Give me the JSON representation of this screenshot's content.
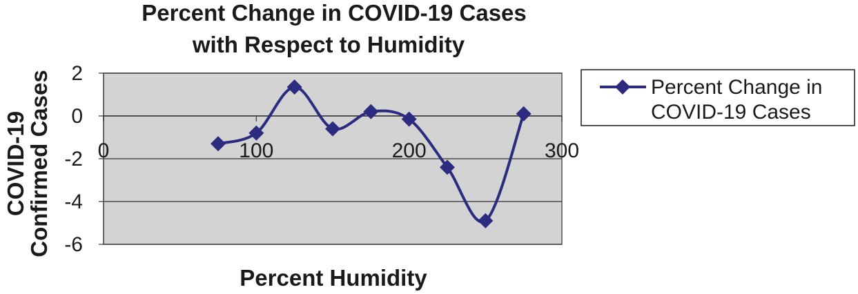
{
  "chart_data": {
    "type": "line",
    "title": [
      "Percent Change in COVID-19 Cases",
      "with Respect to Humidity"
    ],
    "xlabel": "Percent Humidity",
    "ylabel": [
      "COVID-19",
      "Confirmed Cases"
    ],
    "xlim": [
      0,
      300
    ],
    "ylim": [
      -6,
      2
    ],
    "xticks": [
      "0",
      "100",
      "200",
      "300"
    ],
    "yticks": [
      "2",
      "0",
      "-2",
      "-4",
      "-6"
    ],
    "grid": "horizontal",
    "legend_position": "right",
    "smooth": true,
    "series": [
      {
        "name": "Percent Change in COVID-19 Cases",
        "color": "#2b2b80",
        "marker": "diamond",
        "x": [
          75,
          100,
          125,
          150,
          175,
          200,
          225,
          250,
          275
        ],
        "y": [
          -1.3,
          -0.8,
          1.35,
          -0.6,
          0.2,
          -0.15,
          -2.4,
          -4.9,
          0.1
        ]
      }
    ],
    "legend_lines": [
      "Percent Change in",
      "COVID-19 Cases"
    ],
    "plot_background": "#d3d3d3"
  }
}
